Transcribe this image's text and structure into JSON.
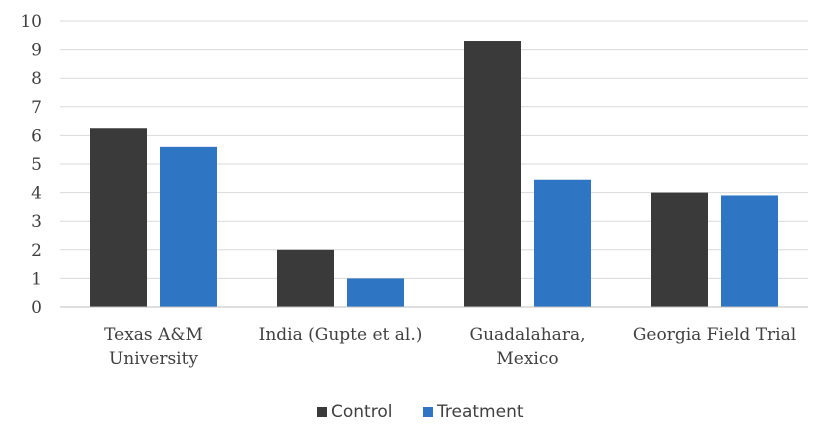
{
  "chart_data": {
    "type": "bar",
    "title": "",
    "xlabel": "",
    "ylabel": "",
    "ylim": [
      0,
      10
    ],
    "yticks": [
      0,
      1,
      2,
      3,
      4,
      5,
      6,
      7,
      8,
      9,
      10
    ],
    "grid": true,
    "legend_position": "bottom",
    "categories": [
      [
        "Texas A&M",
        "University"
      ],
      [
        "India (Gupte et al.)"
      ],
      [
        "Guadalahara,",
        "Mexico"
      ],
      [
        "Georgia Field Trial"
      ]
    ],
    "series": [
      {
        "name": "Control",
        "color": "#3a3a3a",
        "values": [
          6.25,
          2.0,
          9.3,
          4.0
        ]
      },
      {
        "name": "Treatment",
        "color": "#2e75c4",
        "values": [
          5.6,
          1.0,
          4.45,
          3.9
        ]
      }
    ]
  }
}
